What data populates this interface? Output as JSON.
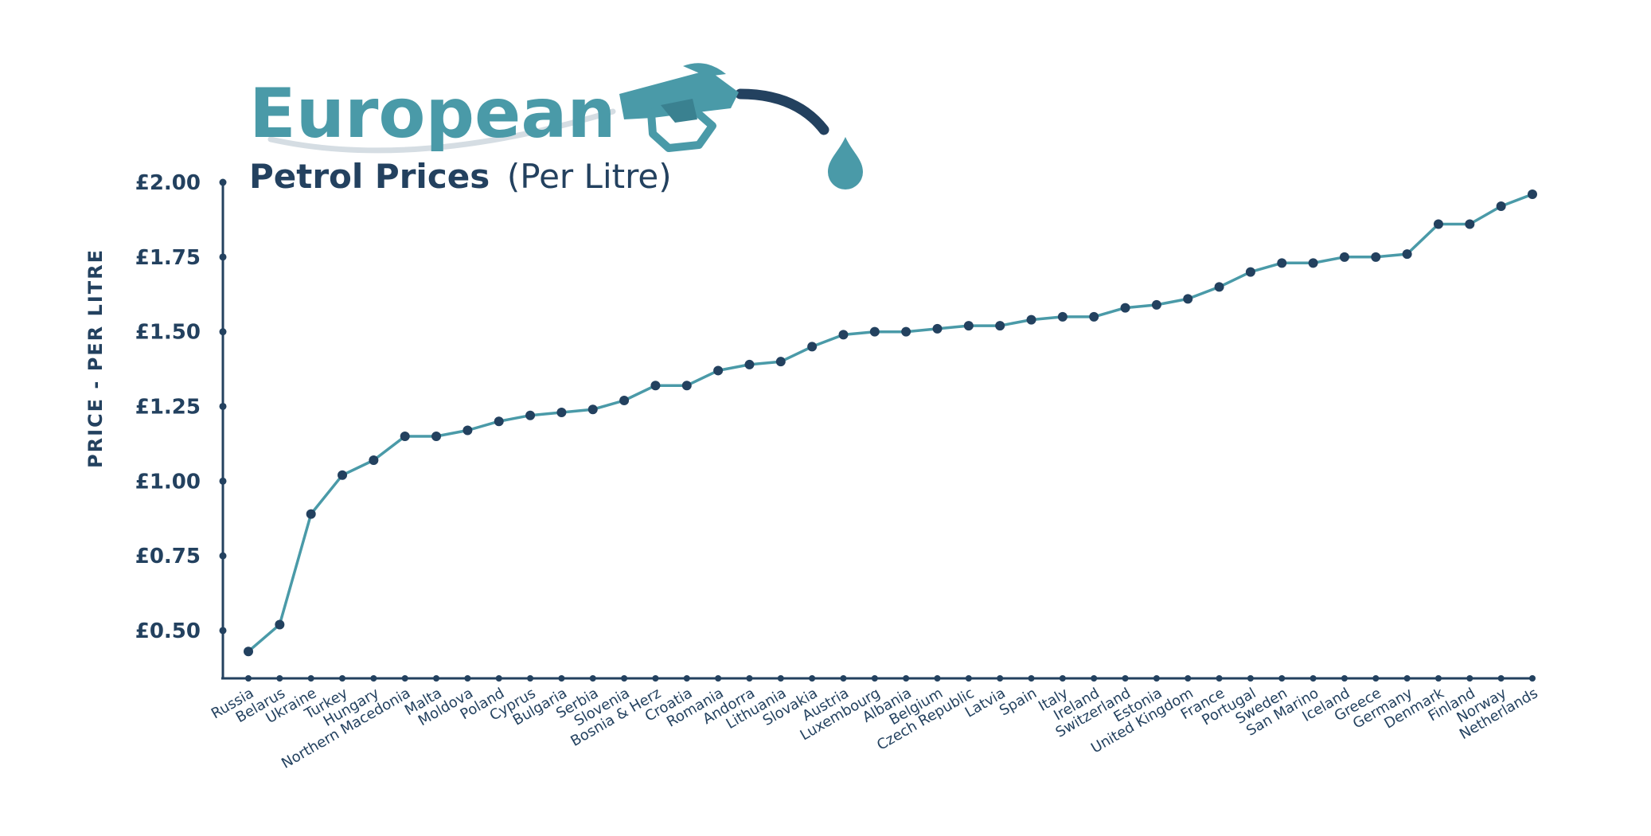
{
  "chart_data": {
    "type": "line",
    "title": "European",
    "subtitle_bold": "Petrol Prices",
    "subtitle_normal": "(Per Litre)",
    "ylabel": "PRICE  - PER LITRE",
    "xlabel": "",
    "ylim": [
      0.34,
      2.0
    ],
    "yticks": [
      0.5,
      0.75,
      1.0,
      1.25,
      1.5,
      1.75,
      2.0
    ],
    "ytick_labels": [
      "£0.50",
      "£0.75",
      "£1.00",
      "£1.25",
      "£1.50",
      "£1.75",
      "£2.00"
    ],
    "grid": false,
    "categories": [
      "Russia",
      "Belarus",
      "Ukraine",
      "Turkey",
      "Hungary",
      "Northern Macedonia",
      "Malta",
      "Moldova",
      "Poland",
      "Cyprus",
      "Bulgaria",
      "Serbia",
      "Slovenia",
      "Bosnia & Herz",
      "Croatia",
      "Romania",
      "Andorra",
      "Lithuania",
      "Slovakia",
      "Austria",
      "Luxembourg",
      "Albania",
      "Belgium",
      "Czech Republic",
      "Latvia",
      "Spain",
      "Italy",
      "Ireland",
      "Switzerland",
      "Estonia",
      "United Kingdom",
      "France",
      "Portugal",
      "Sweden",
      "San Marino",
      "Iceland",
      "Greece",
      "Germany",
      "Denmark",
      "Finland",
      "Norway",
      "Netherlands"
    ],
    "series": [
      {
        "values": [
          0.43,
          0.52,
          0.89,
          1.02,
          1.07,
          1.15,
          1.15,
          1.17,
          1.2,
          1.22,
          1.23,
          1.24,
          1.27,
          1.32,
          1.32,
          1.37,
          1.39,
          1.4,
          1.45,
          1.49,
          1.5,
          1.5,
          1.51,
          1.52,
          1.52,
          1.54,
          1.55,
          1.55,
          1.58,
          1.59,
          1.61,
          1.65,
          1.7,
          1.73,
          1.73,
          1.75,
          1.75,
          1.76,
          1.86,
          1.86,
          1.92,
          1.96
        ]
      }
    ],
    "colors": {
      "line": "#4a9aa8",
      "marker": "#23415f",
      "axis": "#23415f",
      "text": "#23415f",
      "title": "#4a9aa8",
      "icon_light": "#4a9aa8",
      "icon_dark": "#23415f"
    },
    "icons": [
      "fuel-nozzle-icon",
      "fuel-drop-icon"
    ]
  }
}
